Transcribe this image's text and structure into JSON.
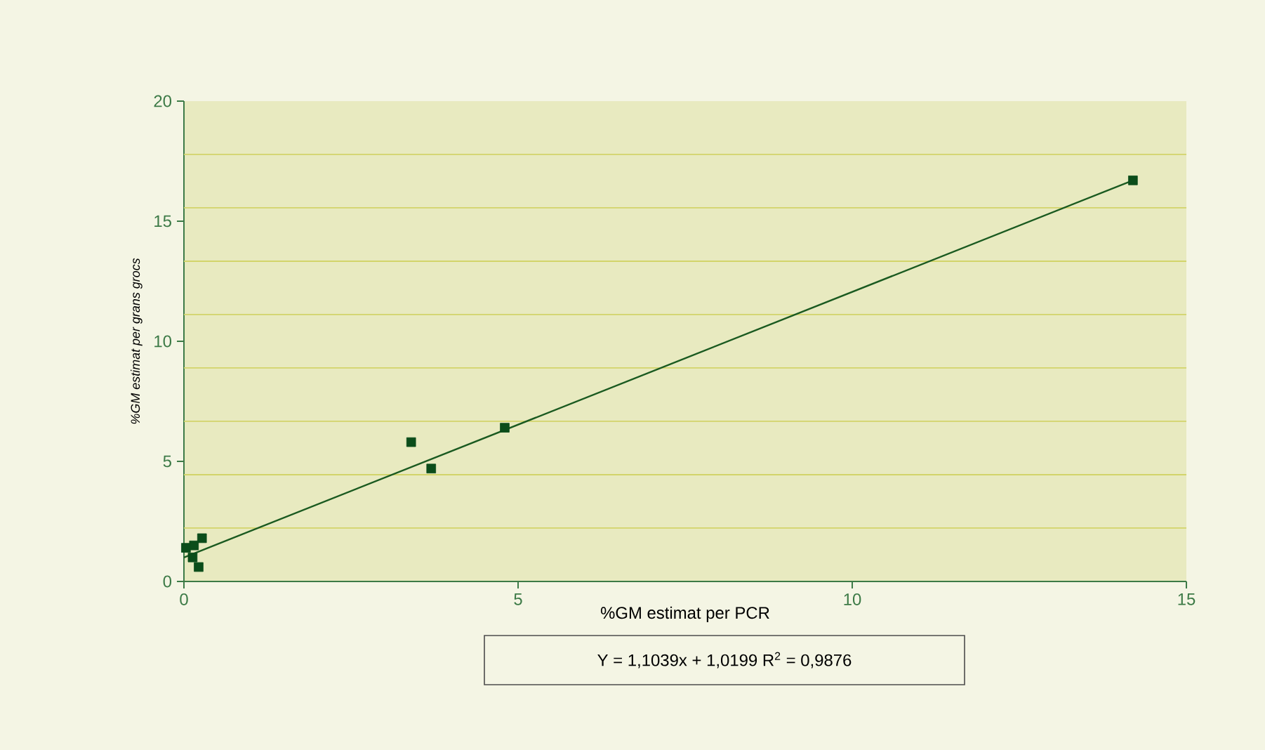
{
  "chart_data": {
    "type": "scatter",
    "xlabel": "%GM estimat per PCR",
    "ylabel": "*%GM estimat per grans grocs*",
    "xlim": [
      0,
      15
    ],
    "ylim": [
      0,
      20
    ],
    "xticks": [
      0,
      5,
      10,
      15
    ],
    "yticks": [
      0,
      5,
      10,
      15,
      20,
      {
        "value": 2.222,
        "label": null
      },
      {
        "value": 4.444,
        "label": null
      },
      {
        "value": 6.667,
        "label": null
      },
      {
        "value": 8.889,
        "label": null
      },
      {
        "value": 11.111,
        "label": null
      },
      {
        "value": 13.333,
        "label": null
      },
      {
        "value": 15.556,
        "label": null
      },
      {
        "value": 17.778,
        "label": null
      }
    ],
    "grid": "y",
    "series": [
      {
        "color": "#0b4d1a",
        "marker": "square",
        "x": [
          14.2,
          4.8,
          3.4,
          3.7,
          0.27,
          0.15,
          0.03,
          0.13,
          0.22
        ],
        "values": [
          16.7,
          6.4,
          5.8,
          4.7,
          1.8,
          1.5,
          1.4,
          1.0,
          0.6
        ]
      },
      {
        "type": "line",
        "color": "#1a5a20",
        "marker": "none",
        "x": [
          0,
          14.2
        ],
        "values": [
          1.0,
          16.7
        ]
      }
    ],
    "annotations": [
      "Y = 1,1039x + 1,0199      R$^{2}$ = 0,9876"
    ]
  }
}
